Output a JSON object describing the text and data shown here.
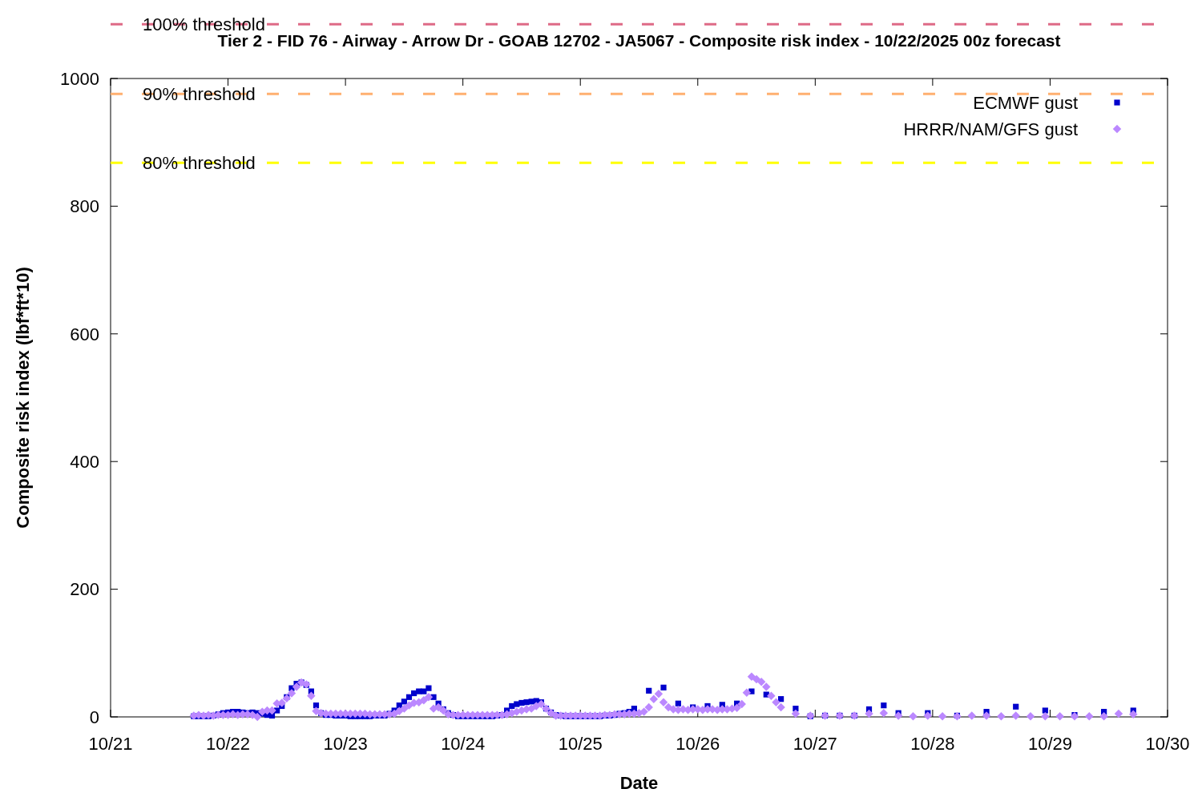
{
  "chart_data": {
    "type": "scatter",
    "title": "Tier 2 - FID 76 - Airway - Arrow Dr - GOAB 12702 - JA5067 - Composite risk index - 10/22/2025 00z forecast",
    "xlabel": "Date",
    "ylabel": "Composite risk index (lbf*ft*10)",
    "xlim": [
      "2025-10-21",
      "2025-10-30"
    ],
    "xticks": [
      {
        "value": "2025-10-21",
        "label": "10/21"
      },
      {
        "value": "2025-10-22",
        "label": "10/22"
      },
      {
        "value": "2025-10-23",
        "label": "10/23"
      },
      {
        "value": "2025-10-24",
        "label": "10/24"
      },
      {
        "value": "2025-10-25",
        "label": "10/25"
      },
      {
        "value": "2025-10-26",
        "label": "10/26"
      },
      {
        "value": "2025-10-27",
        "label": "10/27"
      },
      {
        "value": "2025-10-28",
        "label": "10/28"
      },
      {
        "value": "2025-10-29",
        "label": "10/29"
      },
      {
        "value": "2025-10-30",
        "label": "10/30"
      }
    ],
    "ylim": [
      0,
      1000
    ],
    "yticks": [
      0,
      200,
      400,
      600,
      800,
      1000
    ],
    "legend": "top right",
    "ref_lines": [
      {
        "axis": "y",
        "value": 1085,
        "label": "100% threshold",
        "color": "#de6a86",
        "line_style": "dashed"
      },
      {
        "axis": "y",
        "value": 976,
        "label": "90% threshold",
        "color": "#ffb070",
        "line_style": "dashed"
      },
      {
        "axis": "y",
        "value": 868,
        "label": "80% threshold",
        "color": "#ffff00",
        "line_style": "dashed"
      }
    ],
    "series": [
      {
        "name": "ECMWF gust",
        "color": "#0000cc",
        "marker": "square",
        "x": [
          "2025-10-21T17:00",
          "2025-10-21T18:00",
          "2025-10-21T19:00",
          "2025-10-21T20:00",
          "2025-10-21T21:00",
          "2025-10-21T22:00",
          "2025-10-21T23:00",
          "2025-10-22T00:00",
          "2025-10-22T01:00",
          "2025-10-22T02:00",
          "2025-10-22T03:00",
          "2025-10-22T04:00",
          "2025-10-22T05:00",
          "2025-10-22T06:00",
          "2025-10-22T07:00",
          "2025-10-22T08:00",
          "2025-10-22T09:00",
          "2025-10-22T10:00",
          "2025-10-22T11:00",
          "2025-10-22T12:00",
          "2025-10-22T13:00",
          "2025-10-22T14:00",
          "2025-10-22T15:00",
          "2025-10-22T16:00",
          "2025-10-22T17:00",
          "2025-10-22T18:00",
          "2025-10-22T19:00",
          "2025-10-22T20:00",
          "2025-10-22T21:00",
          "2025-10-22T22:00",
          "2025-10-22T23:00",
          "2025-10-23T00:00",
          "2025-10-23T01:00",
          "2025-10-23T02:00",
          "2025-10-23T03:00",
          "2025-10-23T04:00",
          "2025-10-23T05:00",
          "2025-10-23T06:00",
          "2025-10-23T07:00",
          "2025-10-23T08:00",
          "2025-10-23T09:00",
          "2025-10-23T10:00",
          "2025-10-23T11:00",
          "2025-10-23T12:00",
          "2025-10-23T13:00",
          "2025-10-23T14:00",
          "2025-10-23T15:00",
          "2025-10-23T16:00",
          "2025-10-23T17:00",
          "2025-10-23T18:00",
          "2025-10-23T19:00",
          "2025-10-23T20:00",
          "2025-10-23T21:00",
          "2025-10-23T22:00",
          "2025-10-23T23:00",
          "2025-10-24T00:00",
          "2025-10-24T01:00",
          "2025-10-24T02:00",
          "2025-10-24T03:00",
          "2025-10-24T04:00",
          "2025-10-24T05:00",
          "2025-10-24T06:00",
          "2025-10-24T07:00",
          "2025-10-24T08:00",
          "2025-10-24T09:00",
          "2025-10-24T10:00",
          "2025-10-24T11:00",
          "2025-10-24T12:00",
          "2025-10-24T13:00",
          "2025-10-24T14:00",
          "2025-10-24T15:00",
          "2025-10-24T16:00",
          "2025-10-24T17:00",
          "2025-10-24T18:00",
          "2025-10-24T19:00",
          "2025-10-24T20:00",
          "2025-10-24T21:00",
          "2025-10-24T22:00",
          "2025-10-24T23:00",
          "2025-10-25T00:00",
          "2025-10-25T01:00",
          "2025-10-25T02:00",
          "2025-10-25T03:00",
          "2025-10-25T04:00",
          "2025-10-25T05:00",
          "2025-10-25T06:00",
          "2025-10-25T07:00",
          "2025-10-25T08:00",
          "2025-10-25T09:00",
          "2025-10-25T10:00",
          "2025-10-25T11:00",
          "2025-10-25T14:00",
          "2025-10-25T17:00",
          "2025-10-25T20:00",
          "2025-10-25T23:00",
          "2025-10-26T02:00",
          "2025-10-26T05:00",
          "2025-10-26T08:00",
          "2025-10-26T11:00",
          "2025-10-26T14:00",
          "2025-10-26T17:00",
          "2025-10-26T20:00",
          "2025-10-26T23:00",
          "2025-10-27T02:00",
          "2025-10-27T05:00",
          "2025-10-27T08:00",
          "2025-10-27T11:00",
          "2025-10-27T14:00",
          "2025-10-27T17:00",
          "2025-10-27T23:00",
          "2025-10-28T05:00",
          "2025-10-28T11:00",
          "2025-10-28T17:00",
          "2025-10-28T23:00",
          "2025-10-29T05:00",
          "2025-10-29T11:00",
          "2025-10-29T17:00"
        ],
        "values": [
          1,
          1,
          1,
          1,
          2,
          4,
          6,
          7,
          8,
          8,
          7,
          6,
          7,
          6,
          5,
          3,
          2,
          10,
          17,
          31,
          45,
          52,
          54,
          50,
          40,
          18,
          6,
          3,
          3,
          2,
          2,
          2,
          1,
          1,
          1,
          1,
          1,
          2,
          2,
          2,
          5,
          10,
          18,
          24,
          31,
          37,
          40,
          40,
          45,
          31,
          21,
          12,
          6,
          3,
          1,
          1,
          1,
          1,
          1,
          1,
          1,
          1,
          2,
          3,
          10,
          17,
          20,
          22,
          23,
          24,
          25,
          23,
          13,
          7,
          3,
          2,
          1,
          1,
          1,
          1,
          1,
          1,
          1,
          1,
          2,
          2,
          3,
          5,
          6,
          8,
          13,
          41,
          46,
          21,
          15,
          17,
          19,
          21,
          40,
          35,
          28,
          13,
          1,
          2,
          2,
          2,
          12,
          18,
          6,
          6,
          2,
          8,
          16,
          10,
          3,
          8,
          10
        ]
      },
      {
        "name": "HRRR/NAM/GFS gust",
        "color": "#bb88ff",
        "marker": "diamond",
        "x": [
          "2025-10-21T17:00",
          "2025-10-21T18:00",
          "2025-10-21T19:00",
          "2025-10-21T20:00",
          "2025-10-21T21:00",
          "2025-10-21T22:00",
          "2025-10-21T23:00",
          "2025-10-22T00:00",
          "2025-10-22T01:00",
          "2025-10-22T02:00",
          "2025-10-22T03:00",
          "2025-10-22T04:00",
          "2025-10-22T05:00",
          "2025-10-22T06:00",
          "2025-10-22T07:00",
          "2025-10-22T08:00",
          "2025-10-22T09:00",
          "2025-10-22T10:00",
          "2025-10-22T11:00",
          "2025-10-22T12:00",
          "2025-10-22T13:00",
          "2025-10-22T14:00",
          "2025-10-22T15:00",
          "2025-10-22T16:00",
          "2025-10-22T17:00",
          "2025-10-22T18:00",
          "2025-10-22T19:00",
          "2025-10-22T20:00",
          "2025-10-22T21:00",
          "2025-10-22T22:00",
          "2025-10-22T23:00",
          "2025-10-23T00:00",
          "2025-10-23T01:00",
          "2025-10-23T02:00",
          "2025-10-23T03:00",
          "2025-10-23T04:00",
          "2025-10-23T05:00",
          "2025-10-23T06:00",
          "2025-10-23T07:00",
          "2025-10-23T08:00",
          "2025-10-23T09:00",
          "2025-10-23T10:00",
          "2025-10-23T11:00",
          "2025-10-23T12:00",
          "2025-10-23T13:00",
          "2025-10-23T14:00",
          "2025-10-23T15:00",
          "2025-10-23T16:00",
          "2025-10-23T17:00",
          "2025-10-23T18:00",
          "2025-10-23T19:00",
          "2025-10-23T20:00",
          "2025-10-23T21:00",
          "2025-10-23T22:00",
          "2025-10-23T23:00",
          "2025-10-24T00:00",
          "2025-10-24T01:00",
          "2025-10-24T02:00",
          "2025-10-24T03:00",
          "2025-10-24T04:00",
          "2025-10-24T05:00",
          "2025-10-24T06:00",
          "2025-10-24T07:00",
          "2025-10-24T08:00",
          "2025-10-24T09:00",
          "2025-10-24T10:00",
          "2025-10-24T11:00",
          "2025-10-24T12:00",
          "2025-10-24T13:00",
          "2025-10-24T14:00",
          "2025-10-24T15:00",
          "2025-10-24T16:00",
          "2025-10-24T17:00",
          "2025-10-24T18:00",
          "2025-10-24T19:00",
          "2025-10-24T20:00",
          "2025-10-24T21:00",
          "2025-10-24T22:00",
          "2025-10-24T23:00",
          "2025-10-25T00:00",
          "2025-10-25T01:00",
          "2025-10-25T02:00",
          "2025-10-25T03:00",
          "2025-10-25T04:00",
          "2025-10-25T05:00",
          "2025-10-25T06:00",
          "2025-10-25T07:00",
          "2025-10-25T08:00",
          "2025-10-25T09:00",
          "2025-10-25T10:00",
          "2025-10-25T11:00",
          "2025-10-25T12:00",
          "2025-10-25T13:00",
          "2025-10-25T14:00",
          "2025-10-25T15:00",
          "2025-10-25T16:00",
          "2025-10-25T17:00",
          "2025-10-25T18:00",
          "2025-10-25T19:00",
          "2025-10-25T20:00",
          "2025-10-25T21:00",
          "2025-10-25T22:00",
          "2025-10-25T23:00",
          "2025-10-26T00:00",
          "2025-10-26T01:00",
          "2025-10-26T02:00",
          "2025-10-26T03:00",
          "2025-10-26T04:00",
          "2025-10-26T05:00",
          "2025-10-26T06:00",
          "2025-10-26T07:00",
          "2025-10-26T08:00",
          "2025-10-26T09:00",
          "2025-10-26T10:00",
          "2025-10-26T11:00",
          "2025-10-26T12:00",
          "2025-10-26T13:00",
          "2025-10-26T14:00",
          "2025-10-26T15:00",
          "2025-10-26T16:00",
          "2025-10-26T17:00",
          "2025-10-26T20:00",
          "2025-10-26T23:00",
          "2025-10-27T02:00",
          "2025-10-27T05:00",
          "2025-10-27T08:00",
          "2025-10-27T11:00",
          "2025-10-27T14:00",
          "2025-10-27T17:00",
          "2025-10-27T20:00",
          "2025-10-27T23:00",
          "2025-10-28T02:00",
          "2025-10-28T05:00",
          "2025-10-28T08:00",
          "2025-10-28T11:00",
          "2025-10-28T14:00",
          "2025-10-28T17:00",
          "2025-10-28T20:00",
          "2025-10-28T23:00",
          "2025-10-29T02:00",
          "2025-10-29T05:00",
          "2025-10-29T08:00",
          "2025-10-29T11:00",
          "2025-10-29T14:00",
          "2025-10-29T17:00"
        ],
        "values": [
          2,
          3,
          2,
          3,
          2,
          3,
          3,
          3,
          4,
          3,
          4,
          4,
          3,
          0,
          8,
          10,
          10,
          21,
          22,
          29,
          37,
          47,
          54,
          51,
          33,
          9,
          6,
          5,
          5,
          5,
          5,
          5,
          5,
          5,
          5,
          5,
          4,
          4,
          4,
          4,
          4,
          5,
          9,
          13,
          18,
          22,
          23,
          26,
          31,
          13,
          15,
          10,
          4,
          3,
          3,
          3,
          3,
          3,
          3,
          3,
          3,
          3,
          3,
          3,
          4,
          6,
          8,
          10,
          12,
          13,
          17,
          20,
          13,
          6,
          2,
          2,
          2,
          2,
          2,
          2,
          2,
          2,
          2,
          2,
          3,
          3,
          4,
          4,
          4,
          5,
          5,
          6,
          8,
          15,
          28,
          36,
          23,
          15,
          12,
          11,
          12,
          11,
          12,
          12,
          11,
          12,
          12,
          11,
          12,
          12,
          13,
          14,
          20,
          38,
          63,
          59,
          55,
          47,
          33,
          23,
          15,
          5,
          2,
          2,
          2,
          2,
          5,
          6,
          2,
          1,
          2,
          1,
          1,
          2,
          2,
          1,
          2,
          1,
          1,
          1,
          1,
          1,
          1,
          5,
          4
        ]
      }
    ]
  }
}
